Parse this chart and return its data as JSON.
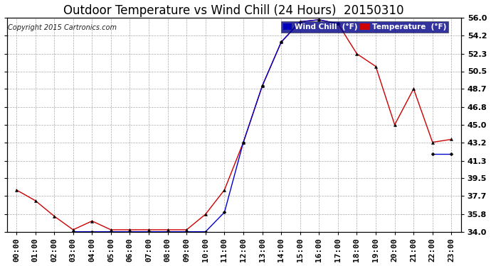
{
  "title": "Outdoor Temperature vs Wind Chill (24 Hours)  20150310",
  "copyright": "Copyright 2015 Cartronics.com",
  "background_color": "#ffffff",
  "plot_background": "#ffffff",
  "grid_color": "#aaaaaa",
  "x_labels": [
    "00:00",
    "01:00",
    "02:00",
    "03:00",
    "04:00",
    "05:00",
    "06:00",
    "07:00",
    "08:00",
    "09:00",
    "10:00",
    "11:00",
    "12:00",
    "13:00",
    "14:00",
    "15:00",
    "16:00",
    "17:00",
    "18:00",
    "19:00",
    "20:00",
    "21:00",
    "22:00",
    "23:00"
  ],
  "ylim": [
    34.0,
    56.0
  ],
  "yticks": [
    34.0,
    35.8,
    37.7,
    39.5,
    41.3,
    43.2,
    45.0,
    46.8,
    48.7,
    50.5,
    52.3,
    54.2,
    56.0
  ],
  "temperature": [
    38.3,
    37.2,
    35.6,
    34.2,
    35.1,
    34.2,
    34.2,
    34.2,
    34.2,
    34.2,
    35.8,
    38.3,
    43.2,
    49.0,
    53.5,
    55.6,
    55.8,
    55.4,
    52.3,
    51.0,
    45.0,
    48.7,
    43.2,
    43.5
  ],
  "wind_chill": [
    null,
    null,
    null,
    34.0,
    34.0,
    34.0,
    34.0,
    34.0,
    34.0,
    34.0,
    34.0,
    36.0,
    43.2,
    49.0,
    53.5,
    55.6,
    55.8,
    55.4,
    null,
    null,
    null,
    null,
    42.0,
    42.0
  ],
  "temp_color": "#cc0000",
  "wind_color": "#0000cc",
  "legend_wind_bg": "#0000bb",
  "legend_temp_bg": "#cc0000",
  "title_fontsize": 12,
  "tick_fontsize": 8,
  "copyright_fontsize": 7
}
